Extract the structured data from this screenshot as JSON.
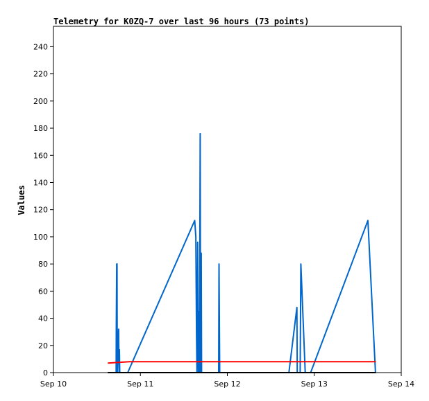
{
  "chart_data": {
    "type": "line",
    "title": "Telemetry for K0ZQ-7 over last 96 hours (73 points)",
    "ylabel": "Values",
    "xlabel": "",
    "x_range_hours": [
      0,
      96
    ],
    "ylim": [
      0,
      255
    ],
    "x_ticks": [
      {
        "label": "Sep 10",
        "hour": 0
      },
      {
        "label": "Sep 11",
        "hour": 24
      },
      {
        "label": "Sep 12",
        "hour": 48
      },
      {
        "label": "Sep 13",
        "hour": 72
      },
      {
        "label": "Sep 14",
        "hour": 96
      }
    ],
    "y_ticks": [
      0,
      20,
      40,
      60,
      80,
      100,
      120,
      140,
      160,
      180,
      200,
      220,
      240
    ],
    "grid": false,
    "series": [
      {
        "color": "#0066cc",
        "points": [
          [
            17.2,
            0
          ],
          [
            17.3,
            0
          ],
          [
            17.35,
            30
          ],
          [
            17.45,
            80
          ],
          [
            17.55,
            80
          ],
          [
            17.6,
            0
          ],
          [
            18.0,
            32
          ],
          [
            18.1,
            0
          ],
          [
            18.2,
            17
          ],
          [
            18.3,
            0
          ],
          [
            20.5,
            0
          ],
          [
            39.0,
            112
          ],
          [
            39.3,
            100
          ],
          [
            39.5,
            28
          ],
          [
            39.6,
            0
          ],
          [
            39.8,
            96
          ],
          [
            40.0,
            0
          ],
          [
            40.2,
            45
          ],
          [
            40.3,
            0
          ],
          [
            40.5,
            176
          ],
          [
            40.6,
            0
          ],
          [
            40.8,
            88
          ],
          [
            40.9,
            0
          ],
          [
            45.6,
            0
          ],
          [
            45.7,
            80
          ],
          [
            45.8,
            40
          ],
          [
            45.9,
            0
          ],
          [
            65.0,
            0
          ],
          [
            67.2,
            48
          ],
          [
            67.3,
            0
          ],
          [
            68.1,
            0
          ],
          [
            68.3,
            80
          ],
          [
            68.6,
            60
          ],
          [
            69.5,
            0
          ],
          [
            71.0,
            0
          ],
          [
            86.8,
            112
          ],
          [
            88.9,
            0
          ]
        ]
      },
      {
        "color": "#ff0000",
        "points": [
          [
            15.0,
            7
          ],
          [
            21.0,
            8
          ],
          [
            45.5,
            8
          ],
          [
            46.5,
            8
          ],
          [
            89.0,
            8
          ]
        ]
      },
      {
        "color": "#000000",
        "points": [
          [
            15.0,
            0
          ],
          [
            89.0,
            0
          ]
        ]
      }
    ]
  }
}
